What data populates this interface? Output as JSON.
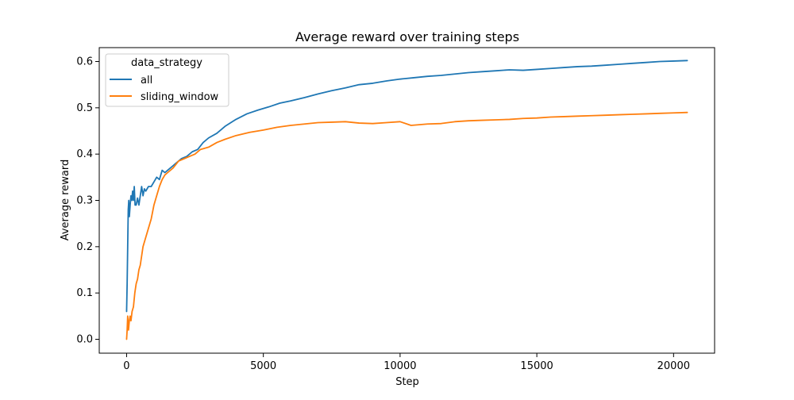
{
  "chart_data": {
    "type": "line",
    "title": "Average reward over training steps",
    "xlabel": "Step",
    "ylabel": "Average reward",
    "xlim": [
      -1000,
      21500
    ],
    "ylim": [
      -0.03,
      0.63
    ],
    "x_ticks": [
      0,
      5000,
      10000,
      15000,
      20000
    ],
    "x_tick_labels": [
      "0",
      "5000",
      "10000",
      "15000",
      "20000"
    ],
    "y_ticks": [
      0.0,
      0.1,
      0.2,
      0.3,
      0.4,
      0.5,
      0.6
    ],
    "y_tick_labels": [
      "0.0",
      "0.1",
      "0.2",
      "0.3",
      "0.4",
      "0.5",
      "0.6"
    ],
    "grid": false,
    "legend": {
      "title": "data_strategy",
      "placement": "top-left"
    },
    "series": [
      {
        "name": "all",
        "color": "#1f77b4",
        "points": [
          [
            0,
            0.06
          ],
          [
            20,
            0.12
          ],
          [
            40,
            0.2
          ],
          [
            60,
            0.28
          ],
          [
            80,
            0.3
          ],
          [
            100,
            0.265
          ],
          [
            130,
            0.29
          ],
          [
            160,
            0.31
          ],
          [
            190,
            0.3
          ],
          [
            220,
            0.32
          ],
          [
            250,
            0.3
          ],
          [
            280,
            0.33
          ],
          [
            310,
            0.29
          ],
          [
            350,
            0.29
          ],
          [
            400,
            0.305
          ],
          [
            450,
            0.29
          ],
          [
            500,
            0.31
          ],
          [
            550,
            0.33
          ],
          [
            600,
            0.31
          ],
          [
            650,
            0.325
          ],
          [
            700,
            0.32
          ],
          [
            800,
            0.33
          ],
          [
            900,
            0.33
          ],
          [
            1000,
            0.34
          ],
          [
            1100,
            0.35
          ],
          [
            1200,
            0.345
          ],
          [
            1300,
            0.365
          ],
          [
            1400,
            0.36
          ],
          [
            1500,
            0.365
          ],
          [
            1600,
            0.37
          ],
          [
            1700,
            0.375
          ],
          [
            1800,
            0.38
          ],
          [
            2000,
            0.39
          ],
          [
            2200,
            0.395
          ],
          [
            2400,
            0.405
          ],
          [
            2600,
            0.41
          ],
          [
            2800,
            0.425
          ],
          [
            3000,
            0.435
          ],
          [
            3300,
            0.445
          ],
          [
            3600,
            0.46
          ],
          [
            4000,
            0.475
          ],
          [
            4400,
            0.487
          ],
          [
            4800,
            0.495
          ],
          [
            5200,
            0.502
          ],
          [
            5600,
            0.51
          ],
          [
            6000,
            0.515
          ],
          [
            6500,
            0.522
          ],
          [
            7000,
            0.53
          ],
          [
            7500,
            0.537
          ],
          [
            8000,
            0.543
          ],
          [
            8500,
            0.55
          ],
          [
            9000,
            0.553
          ],
          [
            9500,
            0.558
          ],
          [
            10000,
            0.562
          ],
          [
            10500,
            0.565
          ],
          [
            11000,
            0.568
          ],
          [
            11500,
            0.57
          ],
          [
            12000,
            0.573
          ],
          [
            12500,
            0.576
          ],
          [
            13000,
            0.578
          ],
          [
            13500,
            0.58
          ],
          [
            14000,
            0.582
          ],
          [
            14500,
            0.581
          ],
          [
            15000,
            0.583
          ],
          [
            15500,
            0.585
          ],
          [
            16000,
            0.587
          ],
          [
            16500,
            0.589
          ],
          [
            17000,
            0.59
          ],
          [
            17500,
            0.592
          ],
          [
            18000,
            0.594
          ],
          [
            18500,
            0.596
          ],
          [
            19000,
            0.598
          ],
          [
            19500,
            0.6
          ],
          [
            20000,
            0.601
          ],
          [
            20500,
            0.602
          ]
        ]
      },
      {
        "name": "sliding_window",
        "color": "#ff7f0e",
        "points": [
          [
            0,
            0.0
          ],
          [
            20,
            0.02
          ],
          [
            40,
            0.05
          ],
          [
            70,
            0.02
          ],
          [
            100,
            0.04
          ],
          [
            130,
            0.05
          ],
          [
            160,
            0.04
          ],
          [
            200,
            0.06
          ],
          [
            250,
            0.07
          ],
          [
            300,
            0.1
          ],
          [
            350,
            0.12
          ],
          [
            400,
            0.13
          ],
          [
            450,
            0.15
          ],
          [
            500,
            0.16
          ],
          [
            550,
            0.18
          ],
          [
            600,
            0.2
          ],
          [
            700,
            0.22
          ],
          [
            800,
            0.24
          ],
          [
            900,
            0.26
          ],
          [
            1000,
            0.29
          ],
          [
            1100,
            0.31
          ],
          [
            1200,
            0.33
          ],
          [
            1300,
            0.345
          ],
          [
            1400,
            0.355
          ],
          [
            1500,
            0.36
          ],
          [
            1700,
            0.37
          ],
          [
            1900,
            0.385
          ],
          [
            2100,
            0.39
          ],
          [
            2300,
            0.395
          ],
          [
            2500,
            0.4
          ],
          [
            2700,
            0.41
          ],
          [
            3000,
            0.415
          ],
          [
            3300,
            0.425
          ],
          [
            3600,
            0.432
          ],
          [
            4000,
            0.44
          ],
          [
            4500,
            0.447
          ],
          [
            5000,
            0.452
          ],
          [
            5500,
            0.458
          ],
          [
            6000,
            0.462
          ],
          [
            6500,
            0.465
          ],
          [
            7000,
            0.468
          ],
          [
            7500,
            0.469
          ],
          [
            8000,
            0.47
          ],
          [
            8500,
            0.467
          ],
          [
            9000,
            0.466
          ],
          [
            9500,
            0.468
          ],
          [
            10000,
            0.47
          ],
          [
            10400,
            0.462
          ],
          [
            11000,
            0.465
          ],
          [
            11500,
            0.466
          ],
          [
            12000,
            0.47
          ],
          [
            12500,
            0.472
          ],
          [
            13000,
            0.473
          ],
          [
            13500,
            0.474
          ],
          [
            14000,
            0.475
          ],
          [
            14500,
            0.477
          ],
          [
            15000,
            0.478
          ],
          [
            15500,
            0.48
          ],
          [
            16000,
            0.481
          ],
          [
            16500,
            0.482
          ],
          [
            17000,
            0.483
          ],
          [
            17500,
            0.484
          ],
          [
            18000,
            0.485
          ],
          [
            18500,
            0.486
          ],
          [
            19000,
            0.487
          ],
          [
            19500,
            0.488
          ],
          [
            20000,
            0.489
          ],
          [
            20500,
            0.49
          ]
        ]
      }
    ]
  }
}
